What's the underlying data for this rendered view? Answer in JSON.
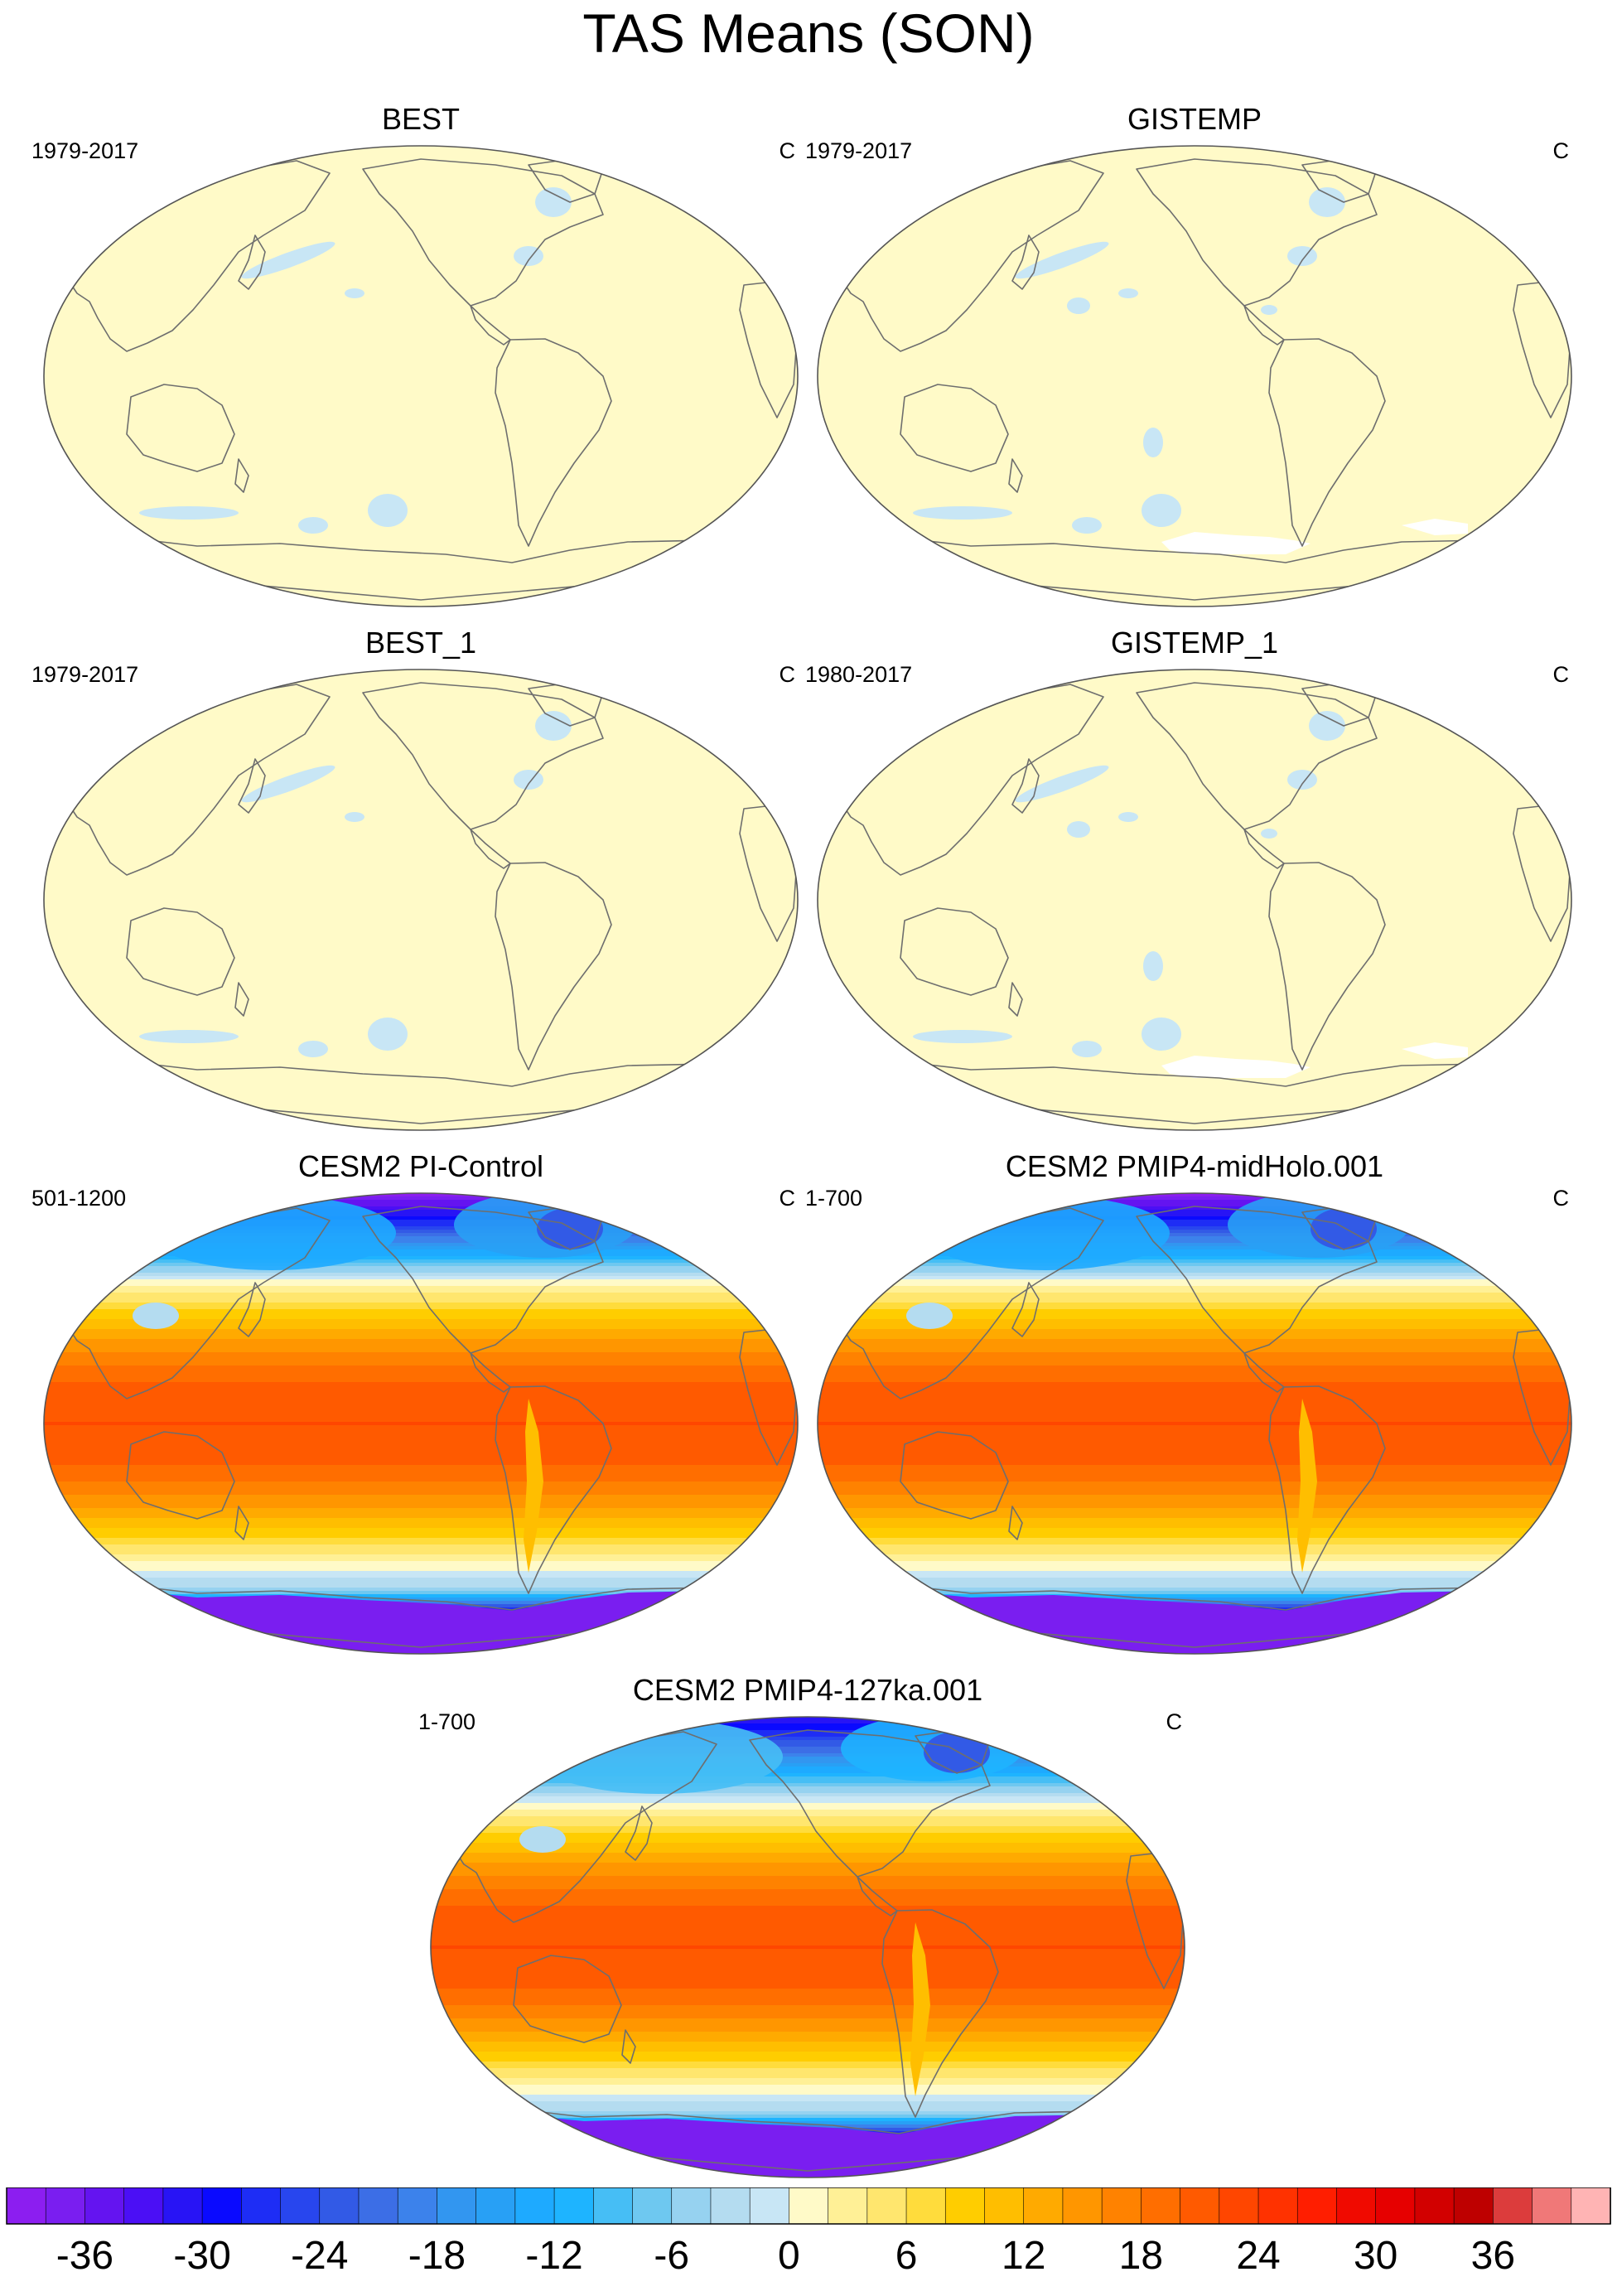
{
  "title": "TAS Means (SON)",
  "chart_data": {
    "type": "heatmap",
    "projection": "world map, Pacific-centered, elliptical outline",
    "variable_units": "C",
    "panels": [
      {
        "title": "BEST",
        "period": "1979-2017",
        "units": "C",
        "field": "near 0 everywhere, small light-blue (-3 to 0) patches in N Pacific, Hudson Bay and Southern Ocean"
      },
      {
        "title": "GISTEMP",
        "period": "1979-2017",
        "units": "C",
        "field": "near 0 everywhere, small light-blue patches; white (missing) over Antarctic margins"
      },
      {
        "title": "BEST_1",
        "period": "1979-2017",
        "units": "C",
        "field": "near 0 everywhere, small light-blue patches in N Pacific, Hudson Bay and Southern Ocean"
      },
      {
        "title": "GISTEMP_1",
        "period": "1980-2017",
        "units": "C",
        "field": "near 0 everywhere, small light-blue patches; white (missing) over Antarctic margins"
      },
      {
        "title": "CESM2 PI-Control",
        "period": "501-1200",
        "units": "C",
        "field": "about 27-30 in tropics, decreasing poleward; below -36 over Antarctica, -12 to -24 over Arctic"
      },
      {
        "title": "CESM2 PMIP4-midHolo.001",
        "period": "1-700",
        "units": "C",
        "field": "about 27-30 in tropics, decreasing poleward; below -36 over Antarctica, -12 to -24 over Arctic"
      },
      {
        "title": "CESM2 PMIP4-127ka.001",
        "period": "1-700",
        "units": "C",
        "field": "about 27-30 in tropics, decreasing poleward; below -36 over Antarctica, -9 to -18 over Arctic"
      }
    ],
    "colorbar": {
      "levels": [
        -40,
        -38,
        -36,
        -34,
        -32,
        -30,
        -28,
        -26,
        -24,
        -22,
        -20,
        -18,
        -16,
        -14,
        -12,
        -10,
        -8,
        -6,
        -4,
        -2,
        0,
        2,
        4,
        6,
        8,
        10,
        12,
        14,
        16,
        18,
        20,
        22,
        24,
        26,
        28,
        30,
        32,
        34,
        36,
        38,
        40
      ],
      "tick_labels": [
        "-36",
        "-30",
        "-24",
        "-18",
        "-12",
        "-6",
        "0",
        "6",
        "12",
        "18",
        "24",
        "30",
        "36"
      ],
      "tick_values": [
        -36,
        -30,
        -24,
        -18,
        -12,
        -6,
        0,
        6,
        12,
        18,
        24,
        30,
        36
      ],
      "colors": [
        "#8c1ef0",
        "#7a1ef0",
        "#6414f0",
        "#4b0ff5",
        "#2814f5",
        "#0a0aff",
        "#1e2df5",
        "#2846ee",
        "#325ae6",
        "#3c6ee6",
        "#3c82eb",
        "#3296f0",
        "#28a0f5",
        "#1eaaff",
        "#1eb4ff",
        "#46bef5",
        "#6ec8f0",
        "#96d2f0",
        "#b4dcf0",
        "#c8e6f5",
        "#fffac8",
        "#fff096",
        "#ffe66e",
        "#ffdc3c",
        "#ffcd00",
        "#ffbe00",
        "#ffaa00",
        "#ff9600",
        "#ff8200",
        "#ff6e00",
        "#ff5a00",
        "#ff4600",
        "#ff3200",
        "#ff1e00",
        "#f00a00",
        "#e60000",
        "#d20000",
        "#be0000",
        "#dc3c3c",
        "#f07878",
        "#ffb4b4"
      ]
    }
  }
}
